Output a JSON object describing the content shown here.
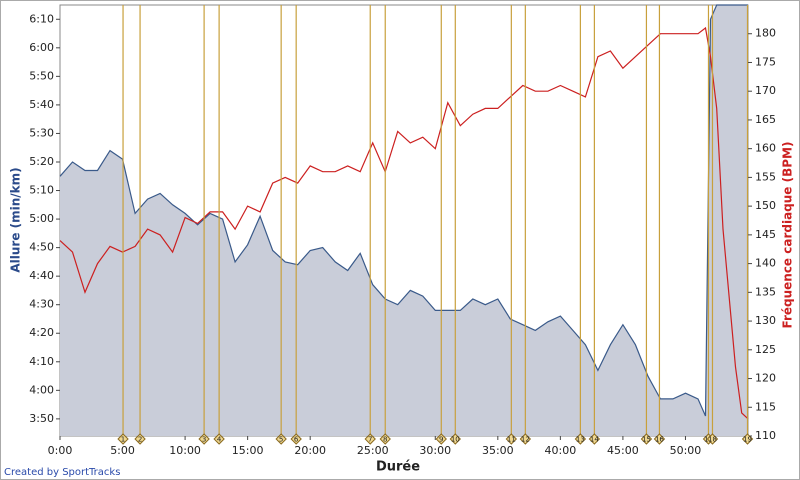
{
  "chart_data": {
    "type": "dual-axis-line",
    "x_title": "Durée",
    "y_title": "Allure (min/km)",
    "y2_title": "Fréquence cardiaque (BPM)",
    "footer": "Created by SportTracks",
    "x": [
      0,
      1,
      2,
      3,
      4,
      5,
      6,
      7,
      8,
      9,
      10,
      11,
      12,
      13,
      14,
      15,
      16,
      17,
      18,
      19,
      20,
      21,
      22,
      23,
      24,
      25,
      26,
      27,
      28,
      29,
      30,
      31,
      32,
      33,
      34,
      35,
      36,
      37,
      38,
      39,
      40,
      41,
      42,
      43,
      44,
      45,
      46,
      47,
      48,
      49,
      50,
      51,
      51.6,
      52,
      52.5,
      53,
      54,
      54.5,
      55
    ],
    "series": [
      {
        "name": "Allure (min/km)",
        "color": "#3a5a8a",
        "fill": "#c9cdd9",
        "axis": "y",
        "area": true,
        "values": [
          315,
          320,
          317,
          317,
          324,
          321,
          302,
          307,
          309,
          305,
          302,
          298,
          302,
          300,
          285,
          291,
          301,
          289,
          285,
          284,
          289,
          290,
          285,
          282,
          288,
          277,
          272,
          270,
          275,
          273,
          268,
          268,
          268,
          272,
          270,
          272,
          265,
          263,
          261,
          264,
          266,
          261,
          256,
          247,
          256,
          263,
          256,
          245,
          237,
          237,
          239,
          237,
          231,
          370,
          375,
          375,
          375,
          375,
          375
        ]
      },
      {
        "name": "Fréquence cardiaque (BPM)",
        "color": "#cc2020",
        "axis": "y2",
        "values": [
          144,
          142,
          135,
          140,
          143,
          142,
          143,
          146,
          145,
          142,
          148,
          147,
          149,
          149,
          146,
          150,
          149,
          154,
          155,
          154,
          157,
          156,
          156,
          157,
          156,
          161,
          156,
          163,
          161,
          162,
          160,
          168,
          164,
          166,
          167,
          167,
          169,
          171,
          170,
          170,
          171,
          170,
          169,
          176,
          177,
          174,
          176,
          178,
          180,
          180,
          180,
          180,
          181,
          176,
          167,
          146,
          122,
          114,
          113
        ]
      }
    ],
    "xlim": [
      0,
      55
    ],
    "xticks": [
      {
        "value": 0,
        "label": "0:00"
      },
      {
        "value": 5,
        "label": "5:00"
      },
      {
        "value": 10,
        "label": "10:00"
      },
      {
        "value": 15,
        "label": "15:00"
      },
      {
        "value": 20,
        "label": "20:00"
      },
      {
        "value": 25,
        "label": "25:00"
      },
      {
        "value": 30,
        "label": "30:00"
      },
      {
        "value": 35,
        "label": "35:00"
      },
      {
        "value": 40,
        "label": "40:00"
      },
      {
        "value": 45,
        "label": "45:00"
      },
      {
        "value": 50,
        "label": "50:00"
      }
    ],
    "ylim": [
      224,
      375
    ],
    "yticks": [
      {
        "value": 230,
        "label": "3:50"
      },
      {
        "value": 240,
        "label": "4:00"
      },
      {
        "value": 250,
        "label": "4:10"
      },
      {
        "value": 260,
        "label": "4:20"
      },
      {
        "value": 270,
        "label": "4:30"
      },
      {
        "value": 280,
        "label": "4:40"
      },
      {
        "value": 290,
        "label": "4:50"
      },
      {
        "value": 300,
        "label": "5:00"
      },
      {
        "value": 310,
        "label": "5:10"
      },
      {
        "value": 320,
        "label": "5:20"
      },
      {
        "value": 330,
        "label": "5:30"
      },
      {
        "value": 340,
        "label": "5:40"
      },
      {
        "value": 350,
        "label": "5:50"
      },
      {
        "value": 360,
        "label": "6:00"
      },
      {
        "value": 370,
        "label": "6:10"
      }
    ],
    "y2lim": [
      110,
      185
    ],
    "y2ticks": [
      110,
      115,
      120,
      125,
      130,
      135,
      140,
      145,
      150,
      155,
      160,
      165,
      170,
      175,
      180
    ],
    "markers": {
      "color": "#c8a03c",
      "labels": [
        "1",
        "2",
        "3",
        "4",
        "5",
        "6",
        "7",
        "8",
        "9",
        "10",
        "11",
        "12",
        "13",
        "14",
        "15",
        "16",
        "17",
        "18",
        "19"
      ],
      "x": [
        5.04,
        6.4,
        11.52,
        12.72,
        17.68,
        18.88,
        24.8,
        26.0,
        30.48,
        31.6,
        36.08,
        37.2,
        41.6,
        42.72,
        46.88,
        47.92,
        51.84,
        52.16,
        54.96
      ]
    }
  }
}
